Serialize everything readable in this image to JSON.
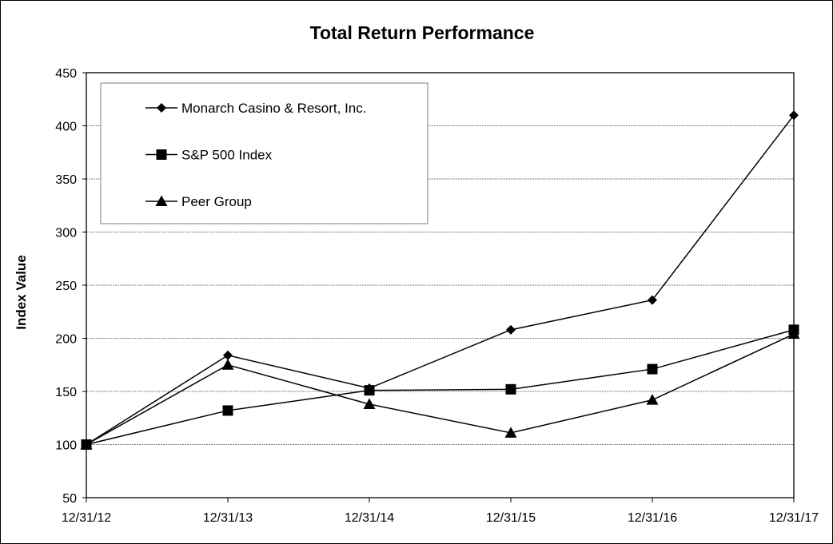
{
  "chart_data": {
    "type": "line",
    "title": "Total Return Performance",
    "xlabel": "",
    "ylabel": "Index Value",
    "categories": [
      "12/31/12",
      "12/31/13",
      "12/31/14",
      "12/31/15",
      "12/31/16",
      "12/31/17"
    ],
    "ylim": [
      50,
      450
    ],
    "yticks": [
      50,
      100,
      150,
      200,
      250,
      300,
      350,
      400,
      450
    ],
    "grid": true,
    "legend_position": "top-left",
    "series": [
      {
        "name": "Monarch Casino & Resort, Inc.",
        "marker": "diamond",
        "values": [
          100,
          184,
          153,
          208,
          236,
          410
        ]
      },
      {
        "name": "S&P 500 Index",
        "marker": "square",
        "values": [
          100,
          132,
          151,
          152,
          171,
          208
        ]
      },
      {
        "name": "Peer Group",
        "marker": "triangle",
        "values": [
          100,
          175,
          138,
          111,
          142,
          204
        ]
      }
    ]
  }
}
